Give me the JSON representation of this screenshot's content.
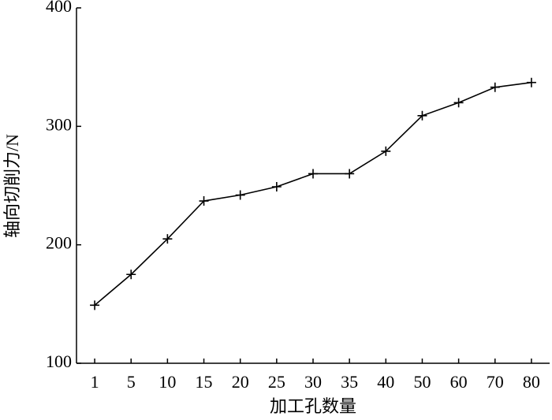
{
  "chart_data": {
    "type": "line",
    "x_label": "加工孔数量",
    "y_label": "轴向切削力/N",
    "categories": [
      "1",
      "5",
      "10",
      "15",
      "20",
      "25",
      "30",
      "35",
      "40",
      "50",
      "60",
      "70",
      "80"
    ],
    "values": [
      149,
      175,
      205,
      237,
      242,
      249,
      260,
      260,
      279,
      309,
      320,
      333,
      337
    ],
    "color": "#000000",
    "marker": "+",
    "ylim": [
      100,
      400
    ],
    "yticks": [
      100,
      200,
      300,
      400
    ],
    "grid": false
  }
}
